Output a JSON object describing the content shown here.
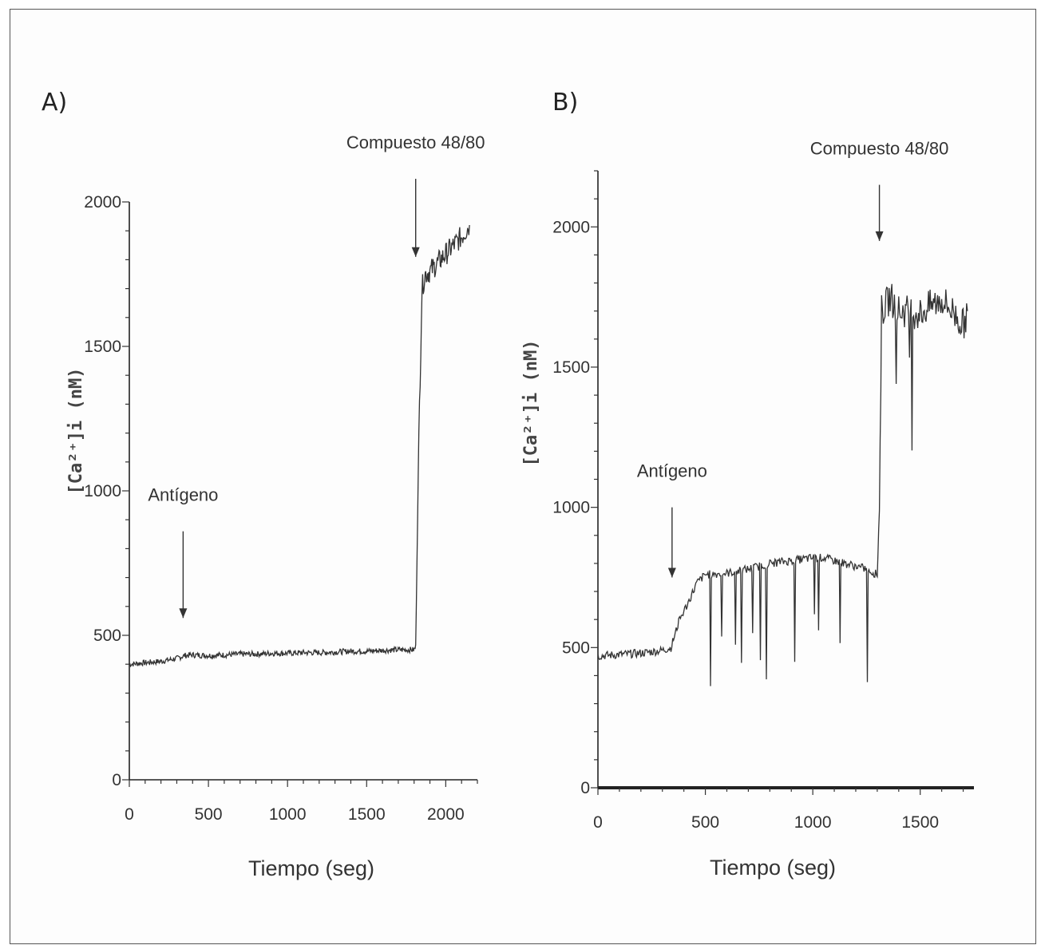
{
  "chart_data": [
    {
      "type": "line",
      "panel_label": "A)",
      "xlabel": "Tiempo (seg)",
      "ylabel": "[Ca²⁺]i (nM)",
      "xlim": [
        0,
        2200
      ],
      "ylim": [
        0,
        2000
      ],
      "x_ticks": [
        0,
        500,
        1000,
        1500,
        2000
      ],
      "y_ticks": [
        0,
        500,
        1000,
        1500,
        2000
      ],
      "x_tick_labels": [
        "0",
        "500",
        "1000",
        "1500",
        "2000"
      ],
      "y_tick_labels": [
        "0",
        "500",
        "1000",
        "1500",
        "2000"
      ],
      "annotations": [
        {
          "text": "Antígeno",
          "x": 340,
          "arrow_y_top": 860,
          "arrow_y_bottom": 560
        },
        {
          "text": "Compuesto 48/80",
          "x": 1810,
          "arrow_y_top": 2080,
          "arrow_y_bottom": 1810
        }
      ],
      "series": [
        {
          "x": [
            0,
            100,
            200,
            300,
            350,
            400,
            500,
            600,
            700,
            800,
            900,
            1000,
            1100,
            1200,
            1300,
            1400,
            1500,
            1600,
            1700,
            1800,
            1810,
            1830,
            1850,
            1870,
            1900,
            1950,
            2000,
            2050,
            2100,
            2150
          ],
          "y": [
            400,
            405,
            410,
            420,
            430,
            432,
            430,
            432,
            435,
            435,
            438,
            438,
            440,
            440,
            442,
            445,
            445,
            448,
            450,
            450,
            460,
            1200,
            1700,
            1750,
            1760,
            1790,
            1820,
            1850,
            1880,
            1920
          ],
          "noise": 0.5
        }
      ]
    },
    {
      "type": "line",
      "panel_label": "B)",
      "xlabel": "Tiempo (seg)",
      "ylabel": "[Ca²⁺]i  (nM)",
      "xlim": [
        0,
        1750
      ],
      "ylim": [
        0,
        2200
      ],
      "x_ticks": [
        0,
        500,
        1000,
        1500
      ],
      "y_ticks": [
        0,
        500,
        1000,
        1500,
        2000
      ],
      "x_tick_labels": [
        "0",
        "500",
        "1000",
        "1500"
      ],
      "y_tick_labels": [
        "0",
        "500",
        "1000",
        "1500",
        "2000"
      ],
      "annotations": [
        {
          "text": "Antígeno",
          "x": 345,
          "arrow_y_top": 1000,
          "arrow_y_bottom": 750
        },
        {
          "text": "Compuesto 48/80",
          "x": 1310,
          "arrow_y_top": 2150,
          "arrow_y_bottom": 1950
        }
      ],
      "series": [
        {
          "x": [
            0,
            100,
            200,
            300,
            340,
            380,
            420,
            460,
            500,
            600,
            700,
            800,
            900,
            1000,
            1050,
            1100,
            1150,
            1200,
            1250,
            1300,
            1310,
            1320,
            1340,
            1360,
            1400,
            1450,
            1500,
            1550,
            1600,
            1650,
            1700,
            1720
          ],
          "y": [
            470,
            475,
            480,
            490,
            500,
            600,
            660,
            730,
            760,
            765,
            780,
            800,
            810,
            820,
            820,
            810,
            800,
            790,
            780,
            760,
            1000,
            1700,
            1720,
            1750,
            1700,
            1700,
            1690,
            1720,
            1740,
            1700,
            1650,
            1700
          ],
          "noise": 1
        }
      ]
    }
  ]
}
